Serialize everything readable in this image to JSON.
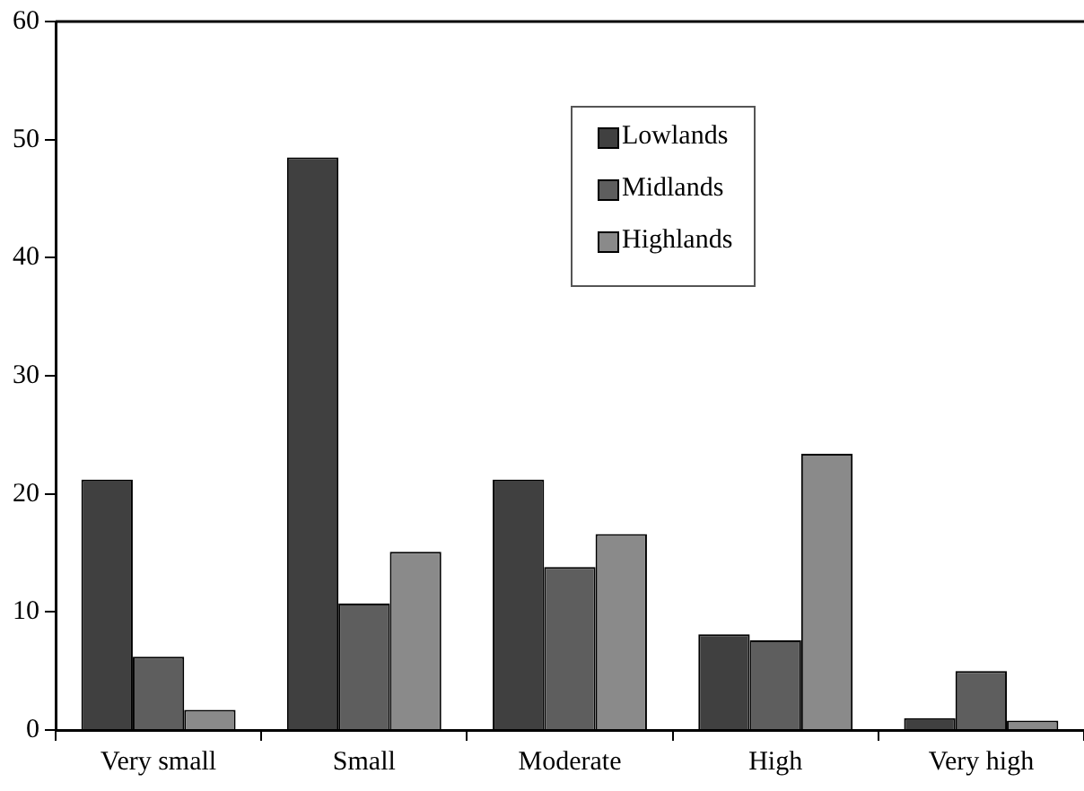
{
  "chart_data": {
    "type": "bar",
    "categories": [
      "Very small",
      "Small",
      "Moderate",
      "High",
      "Very high"
    ],
    "series": [
      {
        "name": "Lowlands",
        "color": "#404040",
        "values": [
          21.2,
          48.5,
          21.2,
          8.1,
          1.0
        ]
      },
      {
        "name": "Midlands",
        "color": "#5e5e5e",
        "values": [
          6.2,
          10.7,
          13.8,
          7.6,
          5.0
        ]
      },
      {
        "name": "Highlands",
        "color": "#8a8a8a",
        "values": [
          1.7,
          15.1,
          16.6,
          23.4,
          0.8
        ]
      }
    ],
    "ylim": [
      0,
      60
    ],
    "yticks": [
      0,
      10,
      20,
      30,
      40,
      50,
      60
    ],
    "grid": false,
    "legend": "top"
  }
}
